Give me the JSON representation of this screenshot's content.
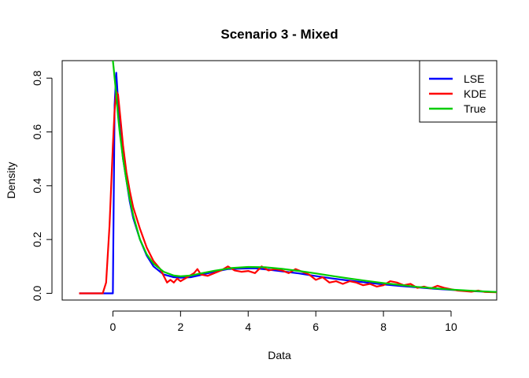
{
  "chart_data": {
    "type": "line",
    "title": "Scenario 3 - Mixed",
    "xlabel": "Data",
    "ylabel": "Density",
    "xlim": [
      -1.5,
      11.35
    ],
    "ylim": [
      -0.025,
      0.865
    ],
    "xticks": [
      0,
      2,
      4,
      6,
      8,
      10
    ],
    "xtick_labels": [
      "0",
      "2",
      "4",
      "6",
      "8",
      "10"
    ],
    "yticks": [
      0.0,
      0.2,
      0.4,
      0.6,
      0.8
    ],
    "ytick_labels": [
      "0.0",
      "0.2",
      "0.4",
      "0.6",
      "0.8"
    ],
    "grid": false,
    "legend_position": "top-right",
    "series": [
      {
        "name": "LSE",
        "color": "#0000ff",
        "x": [
          -1.0,
          -0.5,
          0.0,
          0.02,
          0.05,
          0.1,
          0.15,
          0.2,
          0.3,
          0.4,
          0.5,
          0.6,
          0.8,
          1.0,
          1.2,
          1.5,
          1.8,
          2.0,
          2.3,
          2.6,
          3.0,
          3.4,
          3.8,
          4.2,
          4.6,
          5.0,
          5.5,
          6.0,
          6.5,
          7.0,
          7.5,
          8.0,
          8.5,
          9.0,
          9.5,
          10.0,
          10.5,
          11.0,
          11.35
        ],
        "y": [
          0.0,
          0.0,
          0.0,
          0.3,
          0.7,
          0.82,
          0.72,
          0.62,
          0.5,
          0.42,
          0.34,
          0.28,
          0.2,
          0.14,
          0.1,
          0.07,
          0.06,
          0.058,
          0.06,
          0.068,
          0.08,
          0.09,
          0.092,
          0.093,
          0.088,
          0.082,
          0.074,
          0.064,
          0.055,
          0.047,
          0.04,
          0.033,
          0.027,
          0.022,
          0.017,
          0.013,
          0.009,
          0.006,
          0.005
        ]
      },
      {
        "name": "KDE",
        "color": "#ff0000",
        "x": [
          -1.0,
          -0.5,
          -0.3,
          -0.2,
          -0.1,
          0.0,
          0.05,
          0.1,
          0.15,
          0.2,
          0.3,
          0.4,
          0.5,
          0.6,
          0.7,
          0.8,
          1.0,
          1.2,
          1.4,
          1.5,
          1.6,
          1.7,
          1.8,
          1.9,
          2.0,
          2.2,
          2.4,
          2.5,
          2.6,
          2.8,
          3.0,
          3.2,
          3.4,
          3.6,
          3.8,
          4.0,
          4.2,
          4.4,
          4.6,
          4.8,
          5.0,
          5.2,
          5.4,
          5.6,
          5.8,
          6.0,
          6.2,
          6.4,
          6.6,
          6.8,
          7.0,
          7.2,
          7.4,
          7.6,
          7.8,
          8.0,
          8.2,
          8.4,
          8.6,
          8.8,
          9.0,
          9.2,
          9.4,
          9.6,
          9.8,
          10.0,
          10.2,
          10.4,
          10.6,
          10.8,
          11.0,
          11.35
        ],
        "y": [
          0.0,
          0.0,
          0.0,
          0.04,
          0.25,
          0.55,
          0.68,
          0.75,
          0.74,
          0.68,
          0.55,
          0.45,
          0.38,
          0.32,
          0.28,
          0.24,
          0.17,
          0.12,
          0.09,
          0.065,
          0.04,
          0.05,
          0.04,
          0.055,
          0.045,
          0.06,
          0.075,
          0.09,
          0.07,
          0.065,
          0.075,
          0.085,
          0.1,
          0.085,
          0.08,
          0.083,
          0.075,
          0.1,
          0.085,
          0.09,
          0.085,
          0.075,
          0.09,
          0.08,
          0.07,
          0.05,
          0.06,
          0.04,
          0.045,
          0.035,
          0.045,
          0.04,
          0.03,
          0.035,
          0.025,
          0.03,
          0.045,
          0.04,
          0.03,
          0.035,
          0.02,
          0.025,
          0.018,
          0.028,
          0.02,
          0.015,
          0.01,
          0.008,
          0.006,
          0.01,
          0.005,
          0.004
        ]
      },
      {
        "name": "True",
        "color": "#00cd00",
        "x": [
          0.0,
          0.02,
          0.05,
          0.1,
          0.15,
          0.2,
          0.3,
          0.4,
          0.5,
          0.6,
          0.8,
          1.0,
          1.2,
          1.5,
          1.8,
          2.0,
          2.3,
          2.6,
          3.0,
          3.5,
          4.0,
          4.5,
          5.0,
          5.5,
          6.0,
          6.5,
          7.0,
          7.5,
          8.0,
          8.5,
          9.0,
          9.5,
          10.0,
          10.5,
          11.0,
          11.35
        ],
        "y": [
          0.865,
          0.84,
          0.8,
          0.74,
          0.66,
          0.6,
          0.5,
          0.42,
          0.35,
          0.29,
          0.2,
          0.145,
          0.11,
          0.08,
          0.066,
          0.063,
          0.066,
          0.074,
          0.084,
          0.094,
          0.098,
          0.097,
          0.091,
          0.083,
          0.074,
          0.064,
          0.055,
          0.046,
          0.038,
          0.031,
          0.024,
          0.019,
          0.014,
          0.01,
          0.007,
          0.005
        ]
      }
    ]
  }
}
